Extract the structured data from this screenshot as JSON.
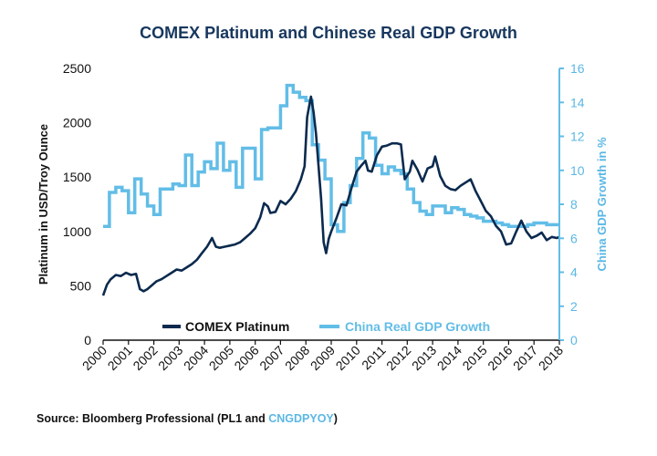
{
  "colors": {
    "platinum": "#0b2a4e",
    "gdp": "#62bde7",
    "title": "#17375e",
    "axis": "#111111"
  },
  "chart_data": {
    "type": "line",
    "title": "COMEX Platinum and Chinese Real GDP Growth",
    "ylabel_left": "Platinum in USD/Troy Ounce",
    "ylabel_right": "China GDP Growth in %",
    "ylim_left": [
      0,
      2500
    ],
    "ylim_right": [
      0,
      16
    ],
    "xlim": [
      2000,
      2018
    ],
    "x_ticks": [
      "2000",
      "2001",
      "2002",
      "2003",
      "2004",
      "2005",
      "2006",
      "2007",
      "2008",
      "2009",
      "2010",
      "2011",
      "2012",
      "2013",
      "2014",
      "2015",
      "2016",
      "2017",
      "2018"
    ],
    "y_ticks_left": [
      "0",
      "500",
      "1000",
      "1500",
      "2000",
      "2500"
    ],
    "y_ticks_right": [
      "0",
      "2",
      "4",
      "6",
      "8",
      "10",
      "12",
      "14",
      "16"
    ],
    "legend_position": "bottom",
    "grid": false,
    "series": [
      {
        "name": "COMEX Platinum",
        "axis": "left",
        "style": "line",
        "x": [
          2000.0,
          2000.15,
          2000.3,
          2000.5,
          2000.7,
          2000.9,
          2001.1,
          2001.3,
          2001.45,
          2001.6,
          2001.75,
          2001.9,
          2002.1,
          2002.3,
          2002.5,
          2002.7,
          2002.9,
          2003.1,
          2003.3,
          2003.5,
          2003.7,
          2003.9,
          2004.1,
          2004.25,
          2004.3,
          2004.45,
          2004.6,
          2004.8,
          2005.0,
          2005.2,
          2005.4,
          2005.6,
          2005.8,
          2006.0,
          2006.2,
          2006.35,
          2006.5,
          2006.6,
          2006.8,
          2007.0,
          2007.2,
          2007.4,
          2007.6,
          2007.8,
          2007.95,
          2008.05,
          2008.15,
          2008.2,
          2008.3,
          2008.4,
          2008.5,
          2008.6,
          2008.7,
          2008.8,
          2008.9,
          2009.0,
          2009.2,
          2009.4,
          2009.6,
          2009.8,
          2010.0,
          2010.2,
          2010.35,
          2010.45,
          2010.6,
          2010.8,
          2011.0,
          2011.2,
          2011.4,
          2011.6,
          2011.75,
          2011.9,
          2012.1,
          2012.2,
          2012.4,
          2012.6,
          2012.8,
          2013.0,
          2013.1,
          2013.3,
          2013.5,
          2013.7,
          2013.9,
          2014.1,
          2014.3,
          2014.5,
          2014.7,
          2014.9,
          2015.1,
          2015.3,
          2015.5,
          2015.7,
          2015.9,
          2016.1,
          2016.3,
          2016.5,
          2016.7,
          2016.9,
          2017.1,
          2017.3,
          2017.5,
          2017.7,
          2017.9,
          2018.0
        ],
        "values": [
          410,
          510,
          560,
          600,
          590,
          620,
          600,
          610,
          470,
          450,
          470,
          500,
          540,
          560,
          590,
          620,
          650,
          640,
          670,
          700,
          740,
          800,
          860,
          920,
          940,
          860,
          850,
          860,
          870,
          880,
          900,
          940,
          980,
          1030,
          1130,
          1260,
          1230,
          1170,
          1180,
          1280,
          1250,
          1300,
          1370,
          1480,
          1600,
          2050,
          2180,
          2240,
          2100,
          1900,
          1600,
          1300,
          900,
          800,
          930,
          1000,
          1120,
          1250,
          1240,
          1400,
          1550,
          1610,
          1650,
          1560,
          1550,
          1700,
          1780,
          1790,
          1810,
          1810,
          1800,
          1480,
          1550,
          1650,
          1570,
          1460,
          1580,
          1600,
          1690,
          1510,
          1420,
          1390,
          1380,
          1420,
          1450,
          1480,
          1370,
          1280,
          1190,
          1140,
          1050,
          1000,
          880,
          890,
          1000,
          1100,
          1000,
          940,
          960,
          990,
          920,
          950,
          940,
          950
        ]
      },
      {
        "name": "China Real GDP Growth",
        "axis": "right",
        "style": "step",
        "x": [
          2000.0,
          2000.25,
          2000.5,
          2000.75,
          2001.0,
          2001.25,
          2001.5,
          2001.75,
          2002.0,
          2002.25,
          2002.5,
          2002.75,
          2003.0,
          2003.25,
          2003.5,
          2003.75,
          2004.0,
          2004.25,
          2004.5,
          2004.75,
          2005.0,
          2005.25,
          2005.5,
          2005.75,
          2006.0,
          2006.25,
          2006.5,
          2006.75,
          2007.0,
          2007.25,
          2007.5,
          2007.75,
          2008.0,
          2008.25,
          2008.5,
          2008.75,
          2009.0,
          2009.25,
          2009.5,
          2009.75,
          2010.0,
          2010.25,
          2010.5,
          2010.75,
          2011.0,
          2011.25,
          2011.5,
          2011.75,
          2012.0,
          2012.25,
          2012.5,
          2012.75,
          2013.0,
          2013.25,
          2013.5,
          2013.75,
          2014.0,
          2014.25,
          2014.5,
          2014.75,
          2015.0,
          2015.25,
          2015.5,
          2015.75,
          2016.0,
          2016.25,
          2016.5,
          2016.75,
          2017.0,
          2017.25,
          2017.5,
          2017.75,
          2018.0
        ],
        "values": [
          6.7,
          8.7,
          9.0,
          8.8,
          7.5,
          9.5,
          8.6,
          7.9,
          7.4,
          8.9,
          8.9,
          9.2,
          9.1,
          10.9,
          9.1,
          9.9,
          10.5,
          10.1,
          11.6,
          10.0,
          10.5,
          9.0,
          11.3,
          11.3,
          9.5,
          12.4,
          12.5,
          12.5,
          13.8,
          15.0,
          14.6,
          14.3,
          14.1,
          11.5,
          10.6,
          9.5,
          6.8,
          6.4,
          8.1,
          9.1,
          10.7,
          12.2,
          11.9,
          10.3,
          9.8,
          10.2,
          10.0,
          9.8,
          8.9,
          8.1,
          7.6,
          7.4,
          7.9,
          7.9,
          7.5,
          7.8,
          7.7,
          7.4,
          7.3,
          7.2,
          7.0,
          7.0,
          6.9,
          6.8,
          6.7,
          6.7,
          6.7,
          6.8,
          6.9,
          6.9,
          6.8,
          6.8,
          6.8
        ]
      }
    ]
  },
  "legend": [
    {
      "label": "COMEX Platinum",
      "color": "#0b2a4e"
    },
    {
      "label": "China Real GDP Growth",
      "color": "#62bde7"
    }
  ],
  "source": {
    "prefix": "Source: Bloomberg Professional (PL1 and ",
    "accent": "CNGDPYOY",
    "suffix": ")"
  }
}
